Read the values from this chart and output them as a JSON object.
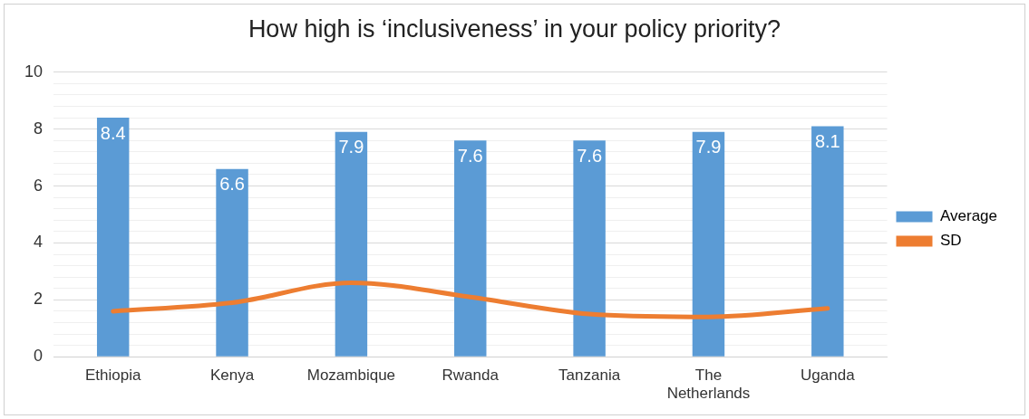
{
  "chart_data": {
    "type": "bar",
    "title": "How high is ‘inclusiveness’ in your policy priority?",
    "categories": [
      "Ethiopia",
      "Kenya",
      "Mozambique",
      "Rwanda",
      "Tanzania",
      "The Netherlands",
      "Uganda"
    ],
    "series": [
      {
        "name": "Average",
        "type": "bar",
        "color": "#5b9bd5",
        "values": [
          8.4,
          6.6,
          7.9,
          7.6,
          7.6,
          7.9,
          8.1
        ],
        "value_labels": [
          "8.4",
          "6.6",
          "7.9",
          "7.6",
          "7.6",
          "7.9",
          "8.1"
        ]
      },
      {
        "name": "SD",
        "type": "line",
        "color": "#ed7d31",
        "values": [
          1.6,
          1.9,
          2.6,
          2.1,
          1.5,
          1.4,
          1.7
        ]
      }
    ],
    "ylim": [
      0,
      10
    ],
    "yticks": [
      0,
      {
        "value": 0.4,
        "label": null
      },
      {
        "value": 0.8,
        "label": null
      },
      {
        "value": 1.2,
        "label": null
      },
      {
        "value": 1.6,
        "label": null
      },
      2,
      {
        "value": 2.4,
        "label": null
      },
      {
        "value": 2.8,
        "label": null
      },
      {
        "value": 3.2,
        "label": null
      },
      {
        "value": 3.6,
        "label": null
      },
      4,
      {
        "value": 4.4,
        "label": null
      },
      {
        "value": 4.8,
        "label": null
      },
      {
        "value": 5.2,
        "label": null
      },
      {
        "value": 5.6,
        "label": null
      },
      6,
      {
        "value": 6.4,
        "label": null
      },
      {
        "value": 6.8,
        "label": null
      },
      {
        "value": 7.2,
        "label": null
      },
      {
        "value": 7.6,
        "label": null
      },
      8,
      {
        "value": 8.4,
        "label": null
      },
      {
        "value": 8.8,
        "label": null
      },
      {
        "value": 9.2,
        "label": null
      },
      {
        "value": 9.6,
        "label": null
      },
      10
    ],
    "grid": "y",
    "legend": "right",
    "marker": "none"
  }
}
